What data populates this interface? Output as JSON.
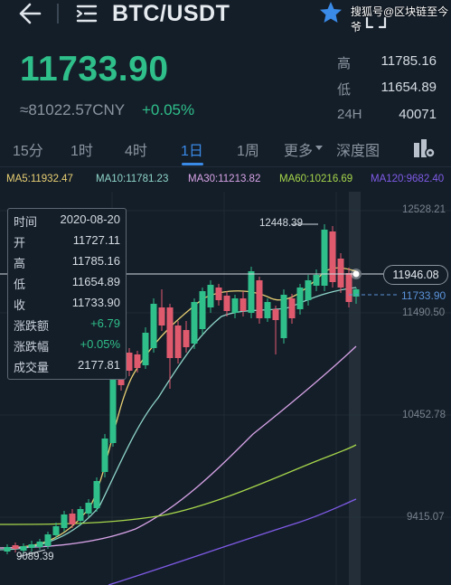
{
  "header": {
    "pair": "BTC/USDT",
    "watermark": "搜狐号@区块链至今爷"
  },
  "ticker": {
    "price": "11733.90",
    "cny": "≈81022.57CNY",
    "change": "+0.05%"
  },
  "stats": [
    {
      "label": "高",
      "value": "11785.16"
    },
    {
      "label": "低",
      "value": "11654.89"
    },
    {
      "label": "24H",
      "value": "40071"
    }
  ],
  "tabs": [
    {
      "label": "15分"
    },
    {
      "label": "1时"
    },
    {
      "label": "4时"
    },
    {
      "label": "1日"
    },
    {
      "label": "1周"
    },
    {
      "label": "更多"
    },
    {
      "label": "深度图"
    }
  ],
  "ma": [
    {
      "label": "MA5:11932.47",
      "color": "#e8cf72"
    },
    {
      "label": "MA10:11781.23",
      "color": "#8fd6c9"
    },
    {
      "label": "MA30:11213.82",
      "color": "#d7a3e6"
    },
    {
      "label": "MA60:10216.69",
      "color": "#a6d64a"
    },
    {
      "label": "MA120:9682.40",
      "color": "#7f5be6"
    }
  ],
  "info": {
    "rows": [
      {
        "key": "时间",
        "value": "2020-08-20"
      },
      {
        "key": "开",
        "value": "11727.11"
      },
      {
        "key": "高",
        "value": "11785.16"
      },
      {
        "key": "低",
        "value": "11654.89"
      },
      {
        "key": "收",
        "value": "11733.90"
      },
      {
        "key": "涨跌额",
        "value": "+6.79"
      },
      {
        "key": "涨跌幅",
        "value": "+0.05%"
      },
      {
        "key": "成交量",
        "value": "2177.81"
      }
    ]
  },
  "axis": {
    "labels": [
      "12528.21",
      "11490.50",
      "10452.78",
      "9415.07"
    ],
    "high_label": "12448.39",
    "low_label": "9089.39",
    "crosshair_price": "11946.08",
    "current_price": "11733.90"
  },
  "colors": {
    "up": "#2fbf8a",
    "down": "#e05a6e",
    "accent": "#3a8ae8"
  }
}
